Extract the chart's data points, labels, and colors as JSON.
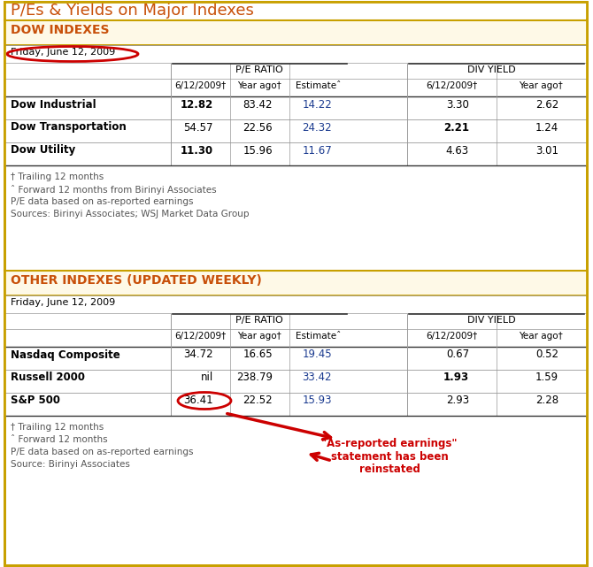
{
  "title": "P/Es & Yields on Major Indexes",
  "title_color": "#c8500a",
  "bg_color": "#ffffff",
  "border_color": "#c8a000",
  "section1_header": "DOW INDEXES",
  "section2_header": "OTHER INDEXES (UPDATED WEEKLY)",
  "date_label": "Friday, June 12, 2009",
  "col_headers_pe": [
    "6/12/2009†",
    "Year ago†",
    "Estimateˆ"
  ],
  "col_headers_div": [
    "6/12/2009†",
    "Year ago†"
  ],
  "group_header_pe": "P/E RATIO",
  "group_header_div": "DIV YIELD",
  "dow_rows": [
    {
      "label": "Dow Industrial",
      "pe_cur": "12.82",
      "pe_year": "83.42",
      "pe_est": "14.22",
      "div_cur": "3.30",
      "div_year": "2.62",
      "pe_cur_bold": true,
      "div_cur_bold": false
    },
    {
      "label": "Dow Transportation",
      "pe_cur": "54.57",
      "pe_year": "22.56",
      "pe_est": "24.32",
      "div_cur": "2.21",
      "div_year": "1.24",
      "pe_cur_bold": false,
      "div_cur_bold": true
    },
    {
      "label": "Dow Utility",
      "pe_cur": "11.30",
      "pe_year": "15.96",
      "pe_est": "11.67",
      "div_cur": "4.63",
      "div_year": "3.01",
      "pe_cur_bold": true,
      "div_cur_bold": false
    }
  ],
  "dow_footnotes": [
    "† Trailing 12 months",
    "ˆ Forward 12 months from Birinyi Associates",
    "P/E data based on as-reported earnings",
    "Sources: Birinyi Associates; WSJ Market Data Group"
  ],
  "other_rows": [
    {
      "label": "Nasdaq Composite",
      "pe_cur": "34.72",
      "pe_year": "16.65",
      "pe_est": "19.45",
      "div_cur": "0.67",
      "div_year": "0.52",
      "pe_cur_bold": false,
      "div_cur_bold": false
    },
    {
      "label": "Russell 2000",
      "pe_cur": "nil",
      "pe_year": "238.79",
      "pe_est": "33.42",
      "div_cur": "1.93",
      "div_year": "1.59",
      "pe_cur_bold": false,
      "div_cur_bold": true
    },
    {
      "label": "S&P 500",
      "pe_cur": "36.41",
      "pe_year": "22.52",
      "pe_est": "15.93",
      "div_cur": "2.93",
      "div_year": "2.28",
      "pe_cur_bold": false,
      "div_cur_bold": false
    }
  ],
  "other_footnotes": [
    "† Trailing 12 months",
    "ˆ Forward 12 months",
    "P/E data based on as-reported earnings",
    "Source: Birinyi Associates"
  ],
  "annotation_text": "\"As-reported earnings\"\nstatement has been\nreinstated",
  "red_color": "#cc0000",
  "header_orange": "#c8500a",
  "text_color": "#000000",
  "footnote_color": "#555555",
  "estimate_color": "#1a3a8f",
  "line_color": "#999999",
  "border_color_gold": "#c8a000",
  "section_header_bg": "#fef9e7",
  "row_bg_alt": "#f5f5f0"
}
